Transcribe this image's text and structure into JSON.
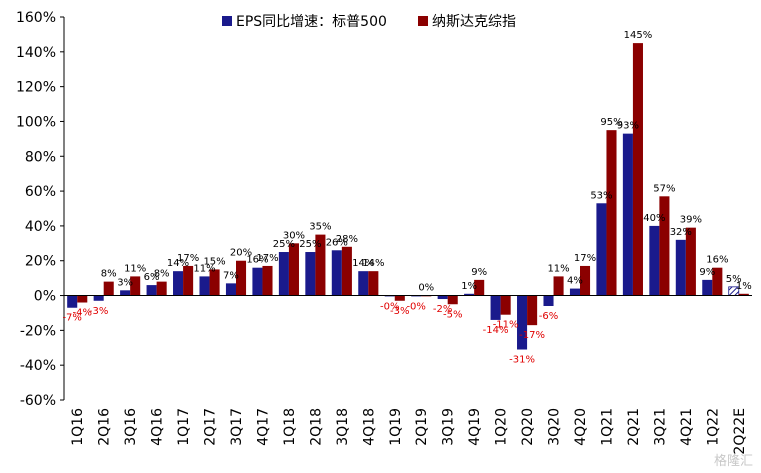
{
  "chart_data": {
    "type": "bar",
    "title": "",
    "xlabel": "",
    "ylabel": "",
    "ylim": [
      -60,
      160
    ],
    "ytick_step": 20,
    "y_unit": "%",
    "grid": false,
    "legend_position": "top",
    "categories": [
      "1Q16",
      "2Q16",
      "3Q16",
      "4Q16",
      "1Q17",
      "2Q17",
      "3Q17",
      "4Q17",
      "1Q18",
      "2Q18",
      "3Q18",
      "4Q18",
      "1Q19",
      "2Q19",
      "3Q19",
      "4Q19",
      "1Q20",
      "2Q20",
      "3Q20",
      "4Q20",
      "1Q21",
      "2Q21",
      "3Q21",
      "4Q21",
      "1Q22",
      "2Q22E"
    ],
    "series": [
      {
        "name": "EPS同比增速：标普500",
        "color": "#1a1a8c",
        "values": [
          -7,
          -3,
          3,
          6,
          14,
          11,
          7,
          16,
          25,
          25,
          26,
          14,
          -0.5,
          -0.5,
          -2,
          1,
          -14,
          -31,
          -6,
          4,
          53,
          93,
          40,
          32,
          9,
          5
        ],
        "labels": [
          "-7%",
          "-3%",
          "3%",
          "6%",
          "14%",
          "11%",
          "7%",
          "16%",
          "25%",
          "25%",
          "26%",
          "14%",
          "-0%",
          "-0%",
          "-2%",
          "1%",
          "-14%",
          "-31%",
          "-6%",
          "4%",
          "53%",
          "93%",
          "40%",
          "32%",
          "9%",
          "5%"
        ]
      },
      {
        "name": "纳斯达克综指",
        "color": "#8b0000",
        "values": [
          -4,
          8,
          11,
          8,
          17,
          15,
          20,
          17,
          30,
          35,
          28,
          14,
          -3,
          0,
          -5,
          9,
          -11,
          -17,
          11,
          17,
          95,
          145,
          57,
          39,
          16,
          1
        ],
        "labels": [
          "-4%",
          "8%",
          "11%",
          "8%",
          "17%",
          "15%",
          "20%",
          "17%",
          "30%",
          "35%",
          "28%",
          "14%",
          "-3%",
          "0%",
          "-5%",
          "9%",
          "-11%",
          "-17%",
          "11%",
          "17%",
          "95%",
          "145%",
          "57%",
          "39%",
          "16%",
          "1%"
        ]
      }
    ],
    "estimate_category": "2Q22E",
    "negative_label_color": "#e00000",
    "positive_label_color": "#000000"
  },
  "watermark": "格隆汇"
}
